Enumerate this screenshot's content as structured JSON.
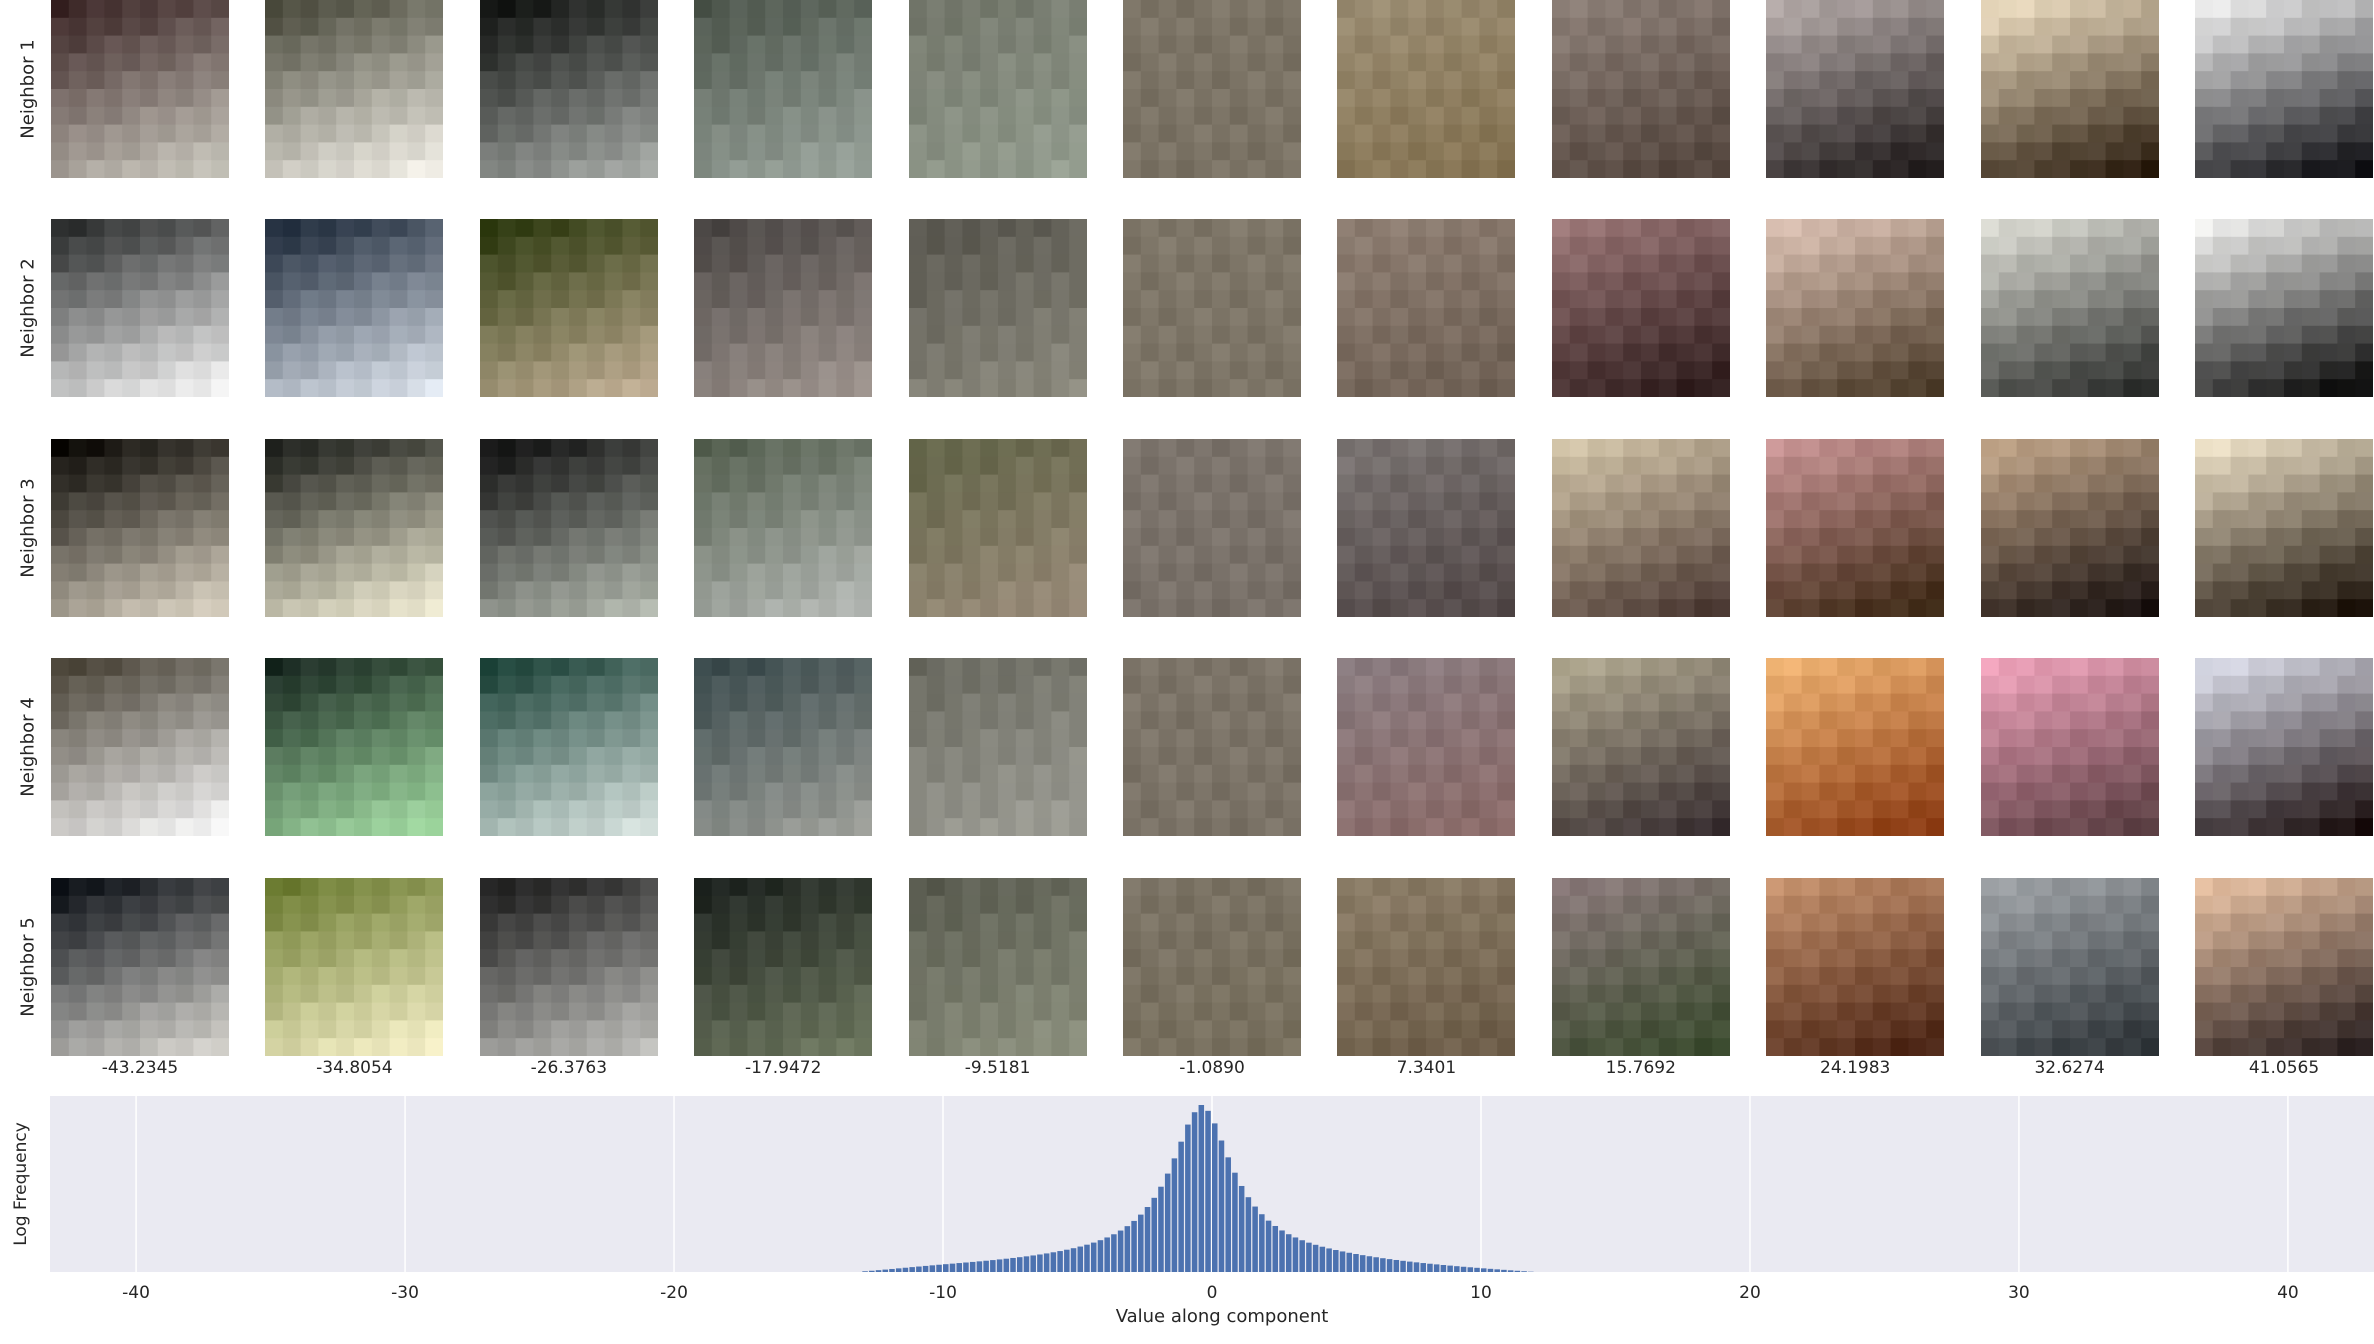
{
  "chart_data": [
    {
      "type": "image-grid",
      "row_labels": [
        "Neighbor 1",
        "Neighbor 2",
        "Neighbor 3",
        "Neighbor 4",
        "Neighbor 5"
      ],
      "column_labels": [
        "-43.2345",
        "-34.8054",
        "-26.3763",
        "-17.9472",
        "-9.5181",
        "-1.0890",
        "7.3401",
        "15.7692",
        "24.1983",
        "32.6274",
        "41.0565"
      ],
      "patch_colors": [
        [
          {
            "top": "#3b2626",
            "bottom": "#c9c7bd"
          },
          {
            "top": "#4a4a3c",
            "bottom": "#f1eee6"
          },
          {
            "top": "#121412",
            "bottom": "#a4a8a4"
          },
          {
            "top": "#4d564c",
            "bottom": "#9aa49c"
          },
          {
            "top": "#72766a",
            "bottom": "#959e90"
          },
          {
            "top": "#7c7466",
            "bottom": "#7a7264"
          },
          {
            "top": "#9a8c72",
            "bottom": "#857352"
          },
          {
            "top": "#8c7f77",
            "bottom": "#52443c"
          },
          {
            "top": "#b4aaa8",
            "bottom": "#1f1a1a"
          },
          {
            "top": "#ecdcc0",
            "bottom": "#2c1e10"
          },
          {
            "top": "#ececec",
            "bottom": "#0e0e12"
          }
        ],
        [
          {
            "top": "#2c2e2e",
            "bottom": "#f3f3f3"
          },
          {
            "top": "#1e2a3a",
            "bottom": "#dce3ec"
          },
          {
            "top": "#2e3a10",
            "bottom": "#c0ae94"
          },
          {
            "top": "#4a4644",
            "bottom": "#9e948e"
          },
          {
            "top": "#58564e",
            "bottom": "#8c8a7e"
          },
          {
            "top": "#7e7668",
            "bottom": "#7c7466"
          },
          {
            "top": "#8e7e72",
            "bottom": "#6e6054"
          },
          {
            "top": "#9a7676",
            "bottom": "#2e1c1c"
          },
          {
            "top": "#dcc2b4",
            "bottom": "#4a3a28"
          },
          {
            "top": "#dcdcd4",
            "bottom": "#2a2c2a"
          },
          {
            "top": "#ececea",
            "bottom": "#0a0a0a"
          }
        ],
        [
          {
            "top": "#0c0a06",
            "bottom": "#d8d0c0"
          },
          {
            "top": "#1e201c",
            "bottom": "#f0ecd4"
          },
          {
            "top": "#141414",
            "bottom": "#b0b6ac"
          },
          {
            "top": "#556050",
            "bottom": "#b4b8b4"
          },
          {
            "top": "#626448",
            "bottom": "#9a8c7a"
          },
          {
            "top": "#7c746c",
            "bottom": "#787068"
          },
          {
            "top": "#7a7472",
            "bottom": "#524848"
          },
          {
            "top": "#d2c4a8",
            "bottom": "#4c3a34"
          },
          {
            "top": "#c89494",
            "bottom": "#3c2814"
          },
          {
            "top": "#c2a68a",
            "bottom": "#1a1210"
          },
          {
            "top": "#ece0c6",
            "bottom": "#1c120a"
          }
        ],
        [
          {
            "top": "#4a4438",
            "bottom": "#f4f4f4"
          },
          {
            "top": "#1a2a22",
            "bottom": "#a4dca4"
          },
          {
            "top": "#1c4238",
            "bottom": "#d4e0dc"
          },
          {
            "top": "#3a4a4c",
            "bottom": "#9c9e98"
          },
          {
            "top": "#6a6a60",
            "bottom": "#9e9e96"
          },
          {
            "top": "#7c7468",
            "bottom": "#7a7266"
          },
          {
            "top": "#8a7c80",
            "bottom": "#8a6a68"
          },
          {
            "top": "#b0a890",
            "bottom": "#3a3032"
          },
          {
            "top": "#f0b474",
            "bottom": "#8a3a12"
          },
          {
            "top": "#f0a4bc",
            "bottom": "#583c40"
          },
          {
            "top": "#dadce8",
            "bottom": "#1c1010"
          }
        ],
        [
          {
            "top": "#0e1218",
            "bottom": "#d4d2cc"
          },
          {
            "top": "#6a7a30",
            "bottom": "#f6f0c8"
          },
          {
            "top": "#1e1e1e",
            "bottom": "#bcbcb8"
          },
          {
            "top": "#1e2420",
            "bottom": "#6e7860"
          },
          {
            "top": "#5a5c50",
            "bottom": "#8c907e"
          },
          {
            "top": "#7a7264",
            "bottom": "#78705e"
          },
          {
            "top": "#8c7e68",
            "bottom": "#6c5c48"
          },
          {
            "top": "#8a7a7a",
            "bottom": "#3a4a2e"
          },
          {
            "top": "#c4906c",
            "bottom": "#4a2414"
          },
          {
            "top": "#a0a4a8",
            "bottom": "#2e3438"
          },
          {
            "top": "#e6c0a2",
            "bottom": "#2a2020"
          }
        ]
      ]
    },
    {
      "type": "bar",
      "xlabel": "Value along component",
      "ylabel": "Log Frequency",
      "xlim": [
        -43.2,
        43.2
      ],
      "xticks": [
        "-40",
        "-30",
        "-20",
        "-10",
        "0",
        "10",
        "20",
        "30",
        "40"
      ],
      "xtick_values": [
        -40,
        -30,
        -20,
        -10,
        0,
        10,
        20,
        30,
        40
      ],
      "grid": true,
      "bar_color": "#4c72b0",
      "background": "#eaeaf2",
      "bin_width": 0.25,
      "bins_left": [
        -13.0,
        -12.75,
        -12.5,
        -12.25,
        -12.0,
        -11.75,
        -11.5,
        -11.25,
        -11.0,
        -10.75,
        -10.5,
        -10.25,
        -10.0,
        -9.75,
        -9.5,
        -9.25,
        -9.0,
        -8.75,
        -8.5,
        -8.25,
        -8.0,
        -7.75,
        -7.5,
        -7.25,
        -7.0,
        -6.75,
        -6.5,
        -6.25,
        -6.0,
        -5.75,
        -5.5,
        -5.25,
        -5.0,
        -4.75,
        -4.5,
        -4.25,
        -4.0,
        -3.75,
        -3.5,
        -3.25,
        -3.0,
        -2.75,
        -2.5,
        -2.25,
        -2.0,
        -1.75,
        -1.5,
        -1.25,
        -1.0,
        -0.75,
        -0.5,
        -0.25,
        0.0,
        0.25,
        0.5,
        0.75,
        1.0,
        1.25,
        1.5,
        1.75,
        2.0,
        2.25,
        2.5,
        2.75,
        3.0,
        3.25,
        3.5,
        3.75,
        4.0,
        4.25,
        4.5,
        4.75,
        5.0,
        5.25,
        5.5,
        5.75,
        6.0,
        6.25,
        6.5,
        6.75,
        7.0,
        7.25,
        7.5,
        7.75,
        8.0,
        8.25,
        8.5,
        8.75,
        9.0,
        9.25,
        9.5,
        9.75,
        10.0,
        10.25,
        10.5,
        10.75,
        11.0,
        11.25,
        11.5,
        11.75,
        12.0,
        12.25,
        12.5,
        12.75
      ],
      "values": [
        0.0043,
        0.0074,
        0.0109,
        0.0145,
        0.0181,
        0.0218,
        0.0255,
        0.0292,
        0.0328,
        0.0364,
        0.0399,
        0.0434,
        0.0468,
        0.0501,
        0.0535,
        0.0569,
        0.0603,
        0.0638,
        0.0675,
        0.0713,
        0.0753,
        0.0796,
        0.084,
        0.0887,
        0.0937,
        0.0991,
        0.1049,
        0.1112,
        0.118,
        0.1254,
        0.1335,
        0.1425,
        0.1524,
        0.1636,
        0.1761,
        0.1905,
        0.2069,
        0.2259,
        0.2482,
        0.2745,
        0.3058,
        0.3436,
        0.3891,
        0.4442,
        0.5107,
        0.5893,
        0.6804,
        0.7804,
        0.8828,
        0.9567,
        1.0,
        0.9651,
        0.8899,
        0.7874,
        0.6866,
        0.5947,
        0.5151,
        0.4479,
        0.3919,
        0.3459,
        0.3075,
        0.2755,
        0.2488,
        0.2262,
        0.2069,
        0.1902,
        0.1757,
        0.1629,
        0.1514,
        0.1411,
        0.1317,
        0.1231,
        0.1152,
        0.1078,
        0.1009,
        0.0944,
        0.0883,
        0.0826,
        0.0771,
        0.0719,
        0.067,
        0.0623,
        0.0578,
        0.0536,
        0.0495,
        0.0456,
        0.0419,
        0.0383,
        0.0348,
        0.0314,
        0.0282,
        0.025,
        0.0219,
        0.0189,
        0.0159,
        0.013,
        0.0101,
        0.0073,
        0.0045,
        0.0017
      ]
    }
  ]
}
